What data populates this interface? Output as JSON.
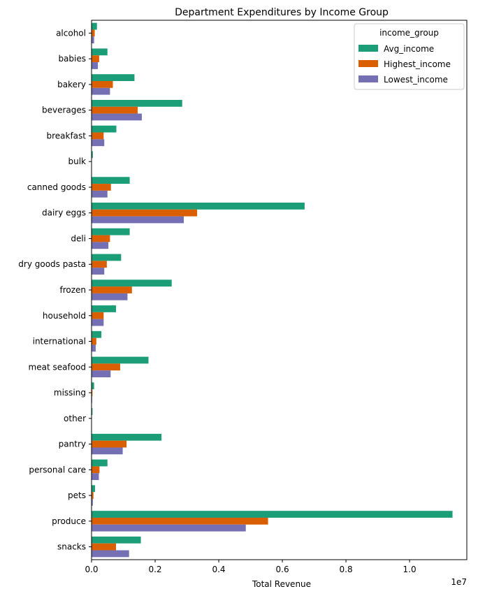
{
  "chart_data": {
    "type": "bar",
    "orientation": "horizontal",
    "title": "Department Expenditures by Income Group",
    "xlabel": "Total Revenue",
    "ylabel": "",
    "x_scale_label": "1e7",
    "x_scale_factor": 10000000,
    "xlim": [
      0,
      11.8
    ],
    "x_ticks": [
      0,
      2,
      4,
      6,
      8,
      10
    ],
    "x_tick_labels": [
      "0.0",
      "0.2",
      "0.4",
      "0.6",
      "0.8",
      "1.0"
    ],
    "grid": false,
    "legend": {
      "title": "income_group",
      "placement": "top-right"
    },
    "categories": [
      "alcohol",
      "babies",
      "bakery",
      "beverages",
      "breakfast",
      "bulk",
      "canned goods",
      "dairy eggs",
      "deli",
      "dry goods pasta",
      "frozen",
      "household",
      "international",
      "meat seafood",
      "missing",
      "other",
      "pantry",
      "personal care",
      "pets",
      "produce",
      "snacks"
    ],
    "series": [
      {
        "name": "Avg_income",
        "color": "#1b9e77",
        "values": [
          0.17,
          0.5,
          1.35,
          2.85,
          0.78,
          0.04,
          1.2,
          6.7,
          1.2,
          0.93,
          2.52,
          0.77,
          0.31,
          1.79,
          0.08,
          0.03,
          2.2,
          0.5,
          0.11,
          11.35,
          1.55
        ]
      },
      {
        "name": "Highest_income",
        "color": "#d95f02",
        "values": [
          0.1,
          0.24,
          0.67,
          1.45,
          0.38,
          0.01,
          0.61,
          3.32,
          0.58,
          0.48,
          1.27,
          0.38,
          0.15,
          0.9,
          0.03,
          0.01,
          1.1,
          0.25,
          0.06,
          5.55,
          0.77
        ]
      },
      {
        "name": "Lowest_income",
        "color": "#7570b3",
        "values": [
          0.08,
          0.2,
          0.58,
          1.58,
          0.4,
          0.01,
          0.5,
          2.9,
          0.53,
          0.4,
          1.13,
          0.38,
          0.13,
          0.6,
          0.02,
          0.01,
          0.98,
          0.23,
          0.04,
          4.85,
          1.18
        ]
      }
    ]
  }
}
